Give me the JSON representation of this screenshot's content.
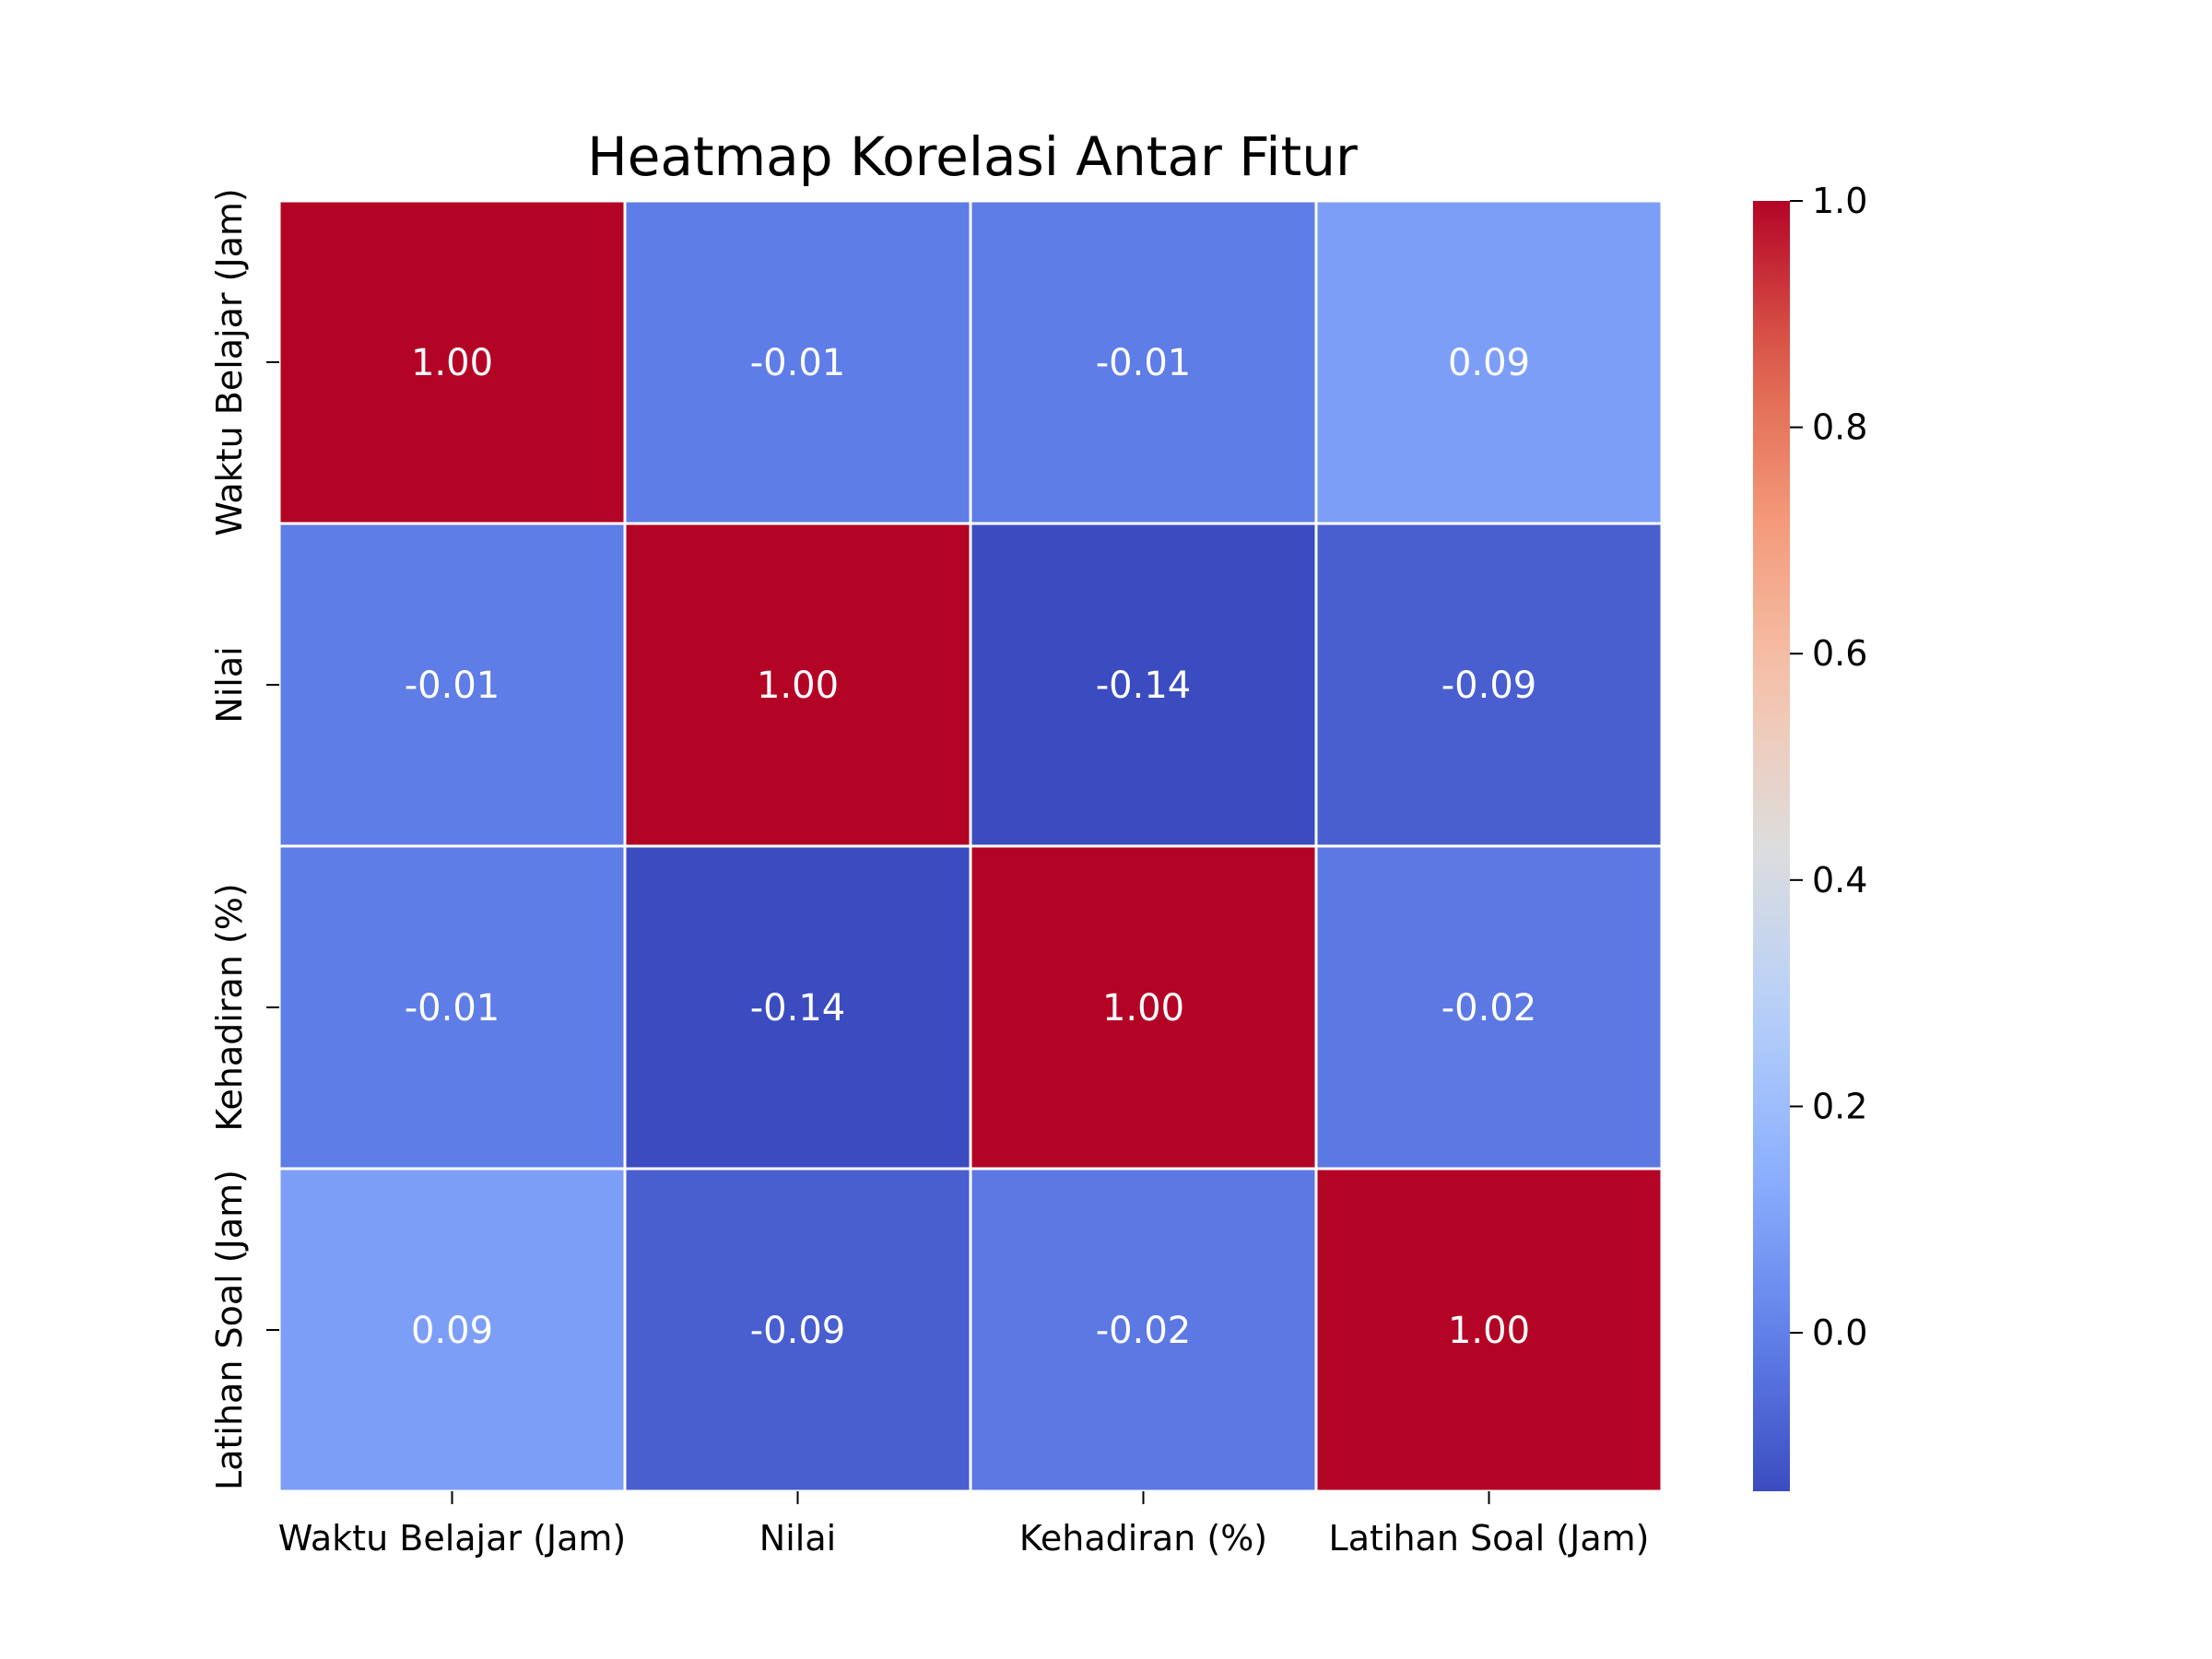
{
  "chart_data": {
    "type": "heatmap",
    "title": "Heatmap Korelasi Antar Fitur",
    "xlabel": "",
    "ylabel": "",
    "categories": [
      "Waktu Belajar (Jam)",
      "Nilai",
      "Kehadiran (%)",
      "Latihan Soal (Jam)"
    ],
    "row_labels": [
      "Waktu Belajar (Jam)",
      "Nilai",
      "Kehadiran (%)",
      "Latihan Soal (Jam)"
    ],
    "values": [
      [
        1.0,
        -0.01,
        -0.01,
        0.09
      ],
      [
        -0.01,
        1.0,
        -0.14,
        -0.09
      ],
      [
        -0.01,
        -0.14,
        1.0,
        -0.02
      ],
      [
        0.09,
        -0.09,
        -0.02,
        1.0
      ]
    ],
    "cell_labels": [
      [
        "1.00",
        "-0.01",
        "-0.01",
        "0.09"
      ],
      [
        "-0.01",
        "1.00",
        "-0.14",
        "-0.09"
      ],
      [
        "-0.01",
        "-0.14",
        "1.00",
        "-0.02"
      ],
      [
        "0.09",
        "-0.09",
        "-0.02",
        "1.00"
      ]
    ],
    "colormap": "coolwarm",
    "vmin": -0.14,
    "vmax": 1.0,
    "colorbar": {
      "ticks": [
        0.0,
        0.2,
        0.4,
        0.6,
        0.8,
        1.0
      ],
      "tick_labels": [
        "0.0",
        "0.2",
        "0.4",
        "0.6",
        "0.8",
        "1.0"
      ]
    },
    "grid": false,
    "legend": "none",
    "colors": {
      "cell_border": "#ffffff",
      "annotation_text": "#ffffff"
    }
  }
}
